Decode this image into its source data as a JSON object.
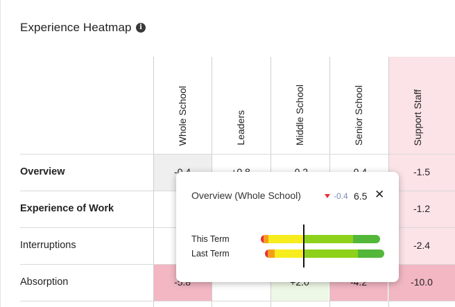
{
  "header": {
    "title": "Experience Heatmap",
    "info_icon": "info-icon"
  },
  "columns": [
    "Whole School",
    "Leaders",
    "Middle School",
    "Senior School",
    "Support Staff"
  ],
  "rows": [
    {
      "label": "Overview",
      "bold": true,
      "values": [
        "-0.4",
        "+0.8",
        "-0.2",
        "-0.4",
        "-1.5"
      ],
      "colors": [
        "#efefef",
        "#ffffff",
        "#ffffff",
        "#ffffff",
        "#fbe3e7"
      ]
    },
    {
      "label": "Experience of Work",
      "bold": true,
      "values": [
        "",
        "",
        "",
        "",
        "-1.2"
      ],
      "colors": [
        "#ffffff",
        "#ffffff",
        "#ffffff",
        "#ffffff",
        "#fbe3e7"
      ]
    },
    {
      "label": "Interruptions",
      "bold": false,
      "values": [
        "",
        "",
        "",
        "",
        "-2.4"
      ],
      "colors": [
        "#ffffff",
        "#ffffff",
        "#ffffff",
        "#ffffff",
        "#fbe3e7"
      ]
    },
    {
      "label": "Absorption",
      "bold": false,
      "values": [
        "-5.8",
        "",
        "+2.0",
        "-4.2",
        "-10.0"
      ],
      "colors": [
        "#f2b7c3",
        "#ffffff",
        "#eef8e6",
        "#f2b7c3",
        "#f2b7c3"
      ]
    }
  ],
  "tooltip": {
    "title": "Overview (Whole School)",
    "delta": "-0.4",
    "score": "6.5",
    "close_icon": "close-icon",
    "this_term_label": "This Term",
    "last_term_label": "Last Term"
  },
  "colors": {
    "negative_arrow": "#e8303a",
    "bar_red": "#e8303a",
    "bar_orange": "#f59e1b",
    "bar_yellow": "#f7ec1e",
    "bar_light_green": "#8ed11a",
    "bar_green": "#53b83a"
  }
}
